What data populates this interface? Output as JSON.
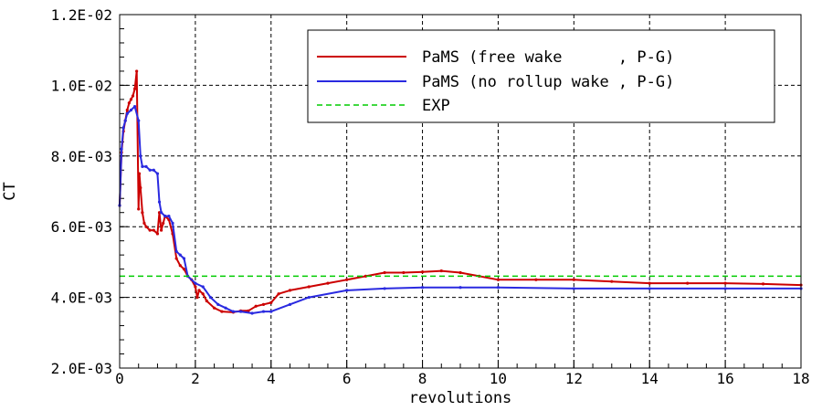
{
  "chart_data": {
    "type": "line",
    "xlabel": "revolutions",
    "ylabel": "CT",
    "xlim": [
      0,
      18
    ],
    "ylim": [
      0.002,
      0.012
    ],
    "x_ticks": [
      "0",
      "2",
      "4",
      "6",
      "8",
      "10",
      "12",
      "14",
      "16",
      "18"
    ],
    "y_ticks": [
      "2.0E-03",
      "4.0E-03",
      "6.0E-03",
      "8.0E-03",
      "1.0E-02",
      "1.2E-02"
    ],
    "grid": true,
    "legend_position": "top-right",
    "series": [
      {
        "name": "PaMS (free wake      , P-G)",
        "color": "#cc0000",
        "style": "solid",
        "x": [
          0.0,
          0.05,
          0.1,
          0.15,
          0.2,
          0.25,
          0.3,
          0.35,
          0.4,
          0.45,
          0.5,
          0.52,
          0.55,
          0.6,
          0.65,
          0.7,
          0.8,
          0.9,
          1.0,
          1.05,
          1.1,
          1.15,
          1.2,
          1.3,
          1.4,
          1.5,
          1.6,
          1.7,
          1.8,
          1.9,
          2.0,
          2.05,
          2.1,
          2.2,
          2.3,
          2.5,
          2.7,
          3.0,
          3.2,
          3.4,
          3.6,
          3.8,
          4.0,
          4.2,
          4.5,
          5.0,
          5.5,
          6.0,
          6.5,
          7.0,
          7.5,
          8.0,
          8.5,
          9.0,
          9.5,
          10.0,
          11.0,
          12.0,
          13.0,
          14.0,
          15.0,
          16.0,
          17.0,
          18.0
        ],
        "y": [
          0.0066,
          0.0081,
          0.0087,
          0.009,
          0.0093,
          0.0095,
          0.0096,
          0.0097,
          0.0099,
          0.0104,
          0.0065,
          0.0075,
          0.0071,
          0.0064,
          0.0061,
          0.006,
          0.0059,
          0.0059,
          0.0058,
          0.0064,
          0.0059,
          0.0061,
          0.0063,
          0.0062,
          0.0058,
          0.0051,
          0.0049,
          0.0048,
          0.0046,
          0.0045,
          0.0043,
          0.004,
          0.0042,
          0.0041,
          0.0039,
          0.0037,
          0.0036,
          0.00358,
          0.00362,
          0.00362,
          0.00375,
          0.0038,
          0.00385,
          0.0041,
          0.0042,
          0.0043,
          0.0044,
          0.0045,
          0.0046,
          0.0047,
          0.0047,
          0.00472,
          0.00475,
          0.0047,
          0.0046,
          0.0045,
          0.0045,
          0.0045,
          0.00445,
          0.0044,
          0.0044,
          0.0044,
          0.00438,
          0.00435
        ]
      },
      {
        "name": "PaMS (no rollup wake , P-G)",
        "color": "#2a2ae0",
        "style": "solid",
        "x": [
          0.0,
          0.05,
          0.1,
          0.15,
          0.2,
          0.3,
          0.4,
          0.5,
          0.55,
          0.6,
          0.7,
          0.8,
          0.9,
          1.0,
          1.05,
          1.1,
          1.2,
          1.3,
          1.4,
          1.5,
          1.6,
          1.7,
          1.8,
          2.0,
          2.2,
          2.4,
          2.6,
          2.8,
          3.0,
          3.2,
          3.5,
          3.8,
          4.0,
          4.5,
          5.0,
          6.0,
          7.0,
          8.0,
          9.0,
          10.0,
          12.0,
          14.0,
          16.0,
          18.0
        ],
        "y": [
          0.0066,
          0.0082,
          0.0088,
          0.009,
          0.0092,
          0.0093,
          0.0094,
          0.009,
          0.008,
          0.0077,
          0.0077,
          0.0076,
          0.0076,
          0.0075,
          0.0067,
          0.0064,
          0.0063,
          0.0063,
          0.0061,
          0.0053,
          0.0052,
          0.0051,
          0.0046,
          0.0044,
          0.0043,
          0.004,
          0.0038,
          0.0037,
          0.0036,
          0.0036,
          0.00355,
          0.0036,
          0.0036,
          0.0038,
          0.004,
          0.0042,
          0.00425,
          0.00428,
          0.00428,
          0.00428,
          0.00425,
          0.00425,
          0.00425,
          0.00425
        ]
      },
      {
        "name": "EXP",
        "color": "#00cc00",
        "style": "dashed",
        "x": [
          0,
          18
        ],
        "y": [
          0.0046,
          0.0046
        ]
      }
    ]
  }
}
